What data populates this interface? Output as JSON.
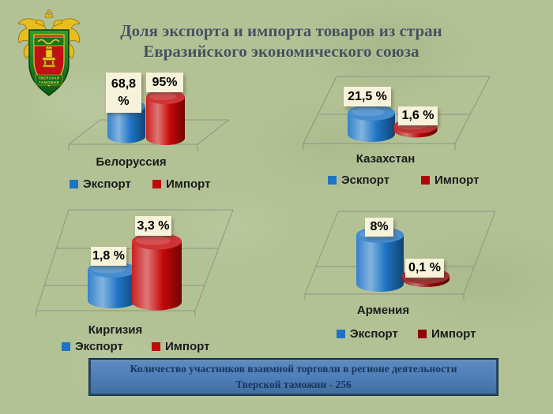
{
  "title": {
    "line1": "Доля экспорта и импорта товаров из стран",
    "line2": "Евразийского экономического союза"
  },
  "emblem": {
    "ribbon_line1": "ТВЕРСКАЯ",
    "ribbon_line2": "ТАМОЖНЯ"
  },
  "chart_data": [
    {
      "type": "cylinder-3d-bar",
      "country": "Белоруссия",
      "unit": "%",
      "series": [
        {
          "name": "Экспорт",
          "value": 68.8,
          "label": "68,8 %",
          "color": "#1d74c4"
        },
        {
          "name": "Импорт",
          "value": 95,
          "label": "95%",
          "color": "#c40808"
        }
      ],
      "legend": [
        "Экспорт",
        "Импорт"
      ],
      "legend_position": "bottom"
    },
    {
      "type": "cylinder-3d-bar",
      "country": "Казахстан",
      "unit": "%",
      "series": [
        {
          "name": "Эскпорт",
          "value": 21.5,
          "label": "21,5 %",
          "color": "#1d74c4"
        },
        {
          "name": "Импорт",
          "value": 1.6,
          "label": "1,6 %",
          "color": "#b30606"
        }
      ],
      "legend": [
        "Эскпорт",
        "Импорт"
      ],
      "legend_position": "bottom"
    },
    {
      "type": "cylinder-3d-bar",
      "country": "Киргизия",
      "unit": "%",
      "series": [
        {
          "name": "Экспорт",
          "value": 1.8,
          "label": "1,8 %",
          "color": "#1d74c4"
        },
        {
          "name": "Импорт",
          "value": 3.3,
          "label": "3,3 %",
          "color": "#c40808"
        }
      ],
      "legend": [
        "Экспорт",
        "Импорт"
      ],
      "legend_position": "bottom"
    },
    {
      "type": "cylinder-3d-bar",
      "country": "Армения",
      "unit": "%",
      "series": [
        {
          "name": "Экспорт",
          "value": 8,
          "label": "8%",
          "color": "#1d74c4"
        },
        {
          "name": "Импорт",
          "value": 0.1,
          "label": "0,1 %",
          "color": "#8e0404"
        }
      ],
      "legend": [
        "Экспорт",
        "Импорт"
      ],
      "legend_position": "bottom"
    }
  ],
  "banner": {
    "line1": "Количество участников взаимной торговли в регионе деятельности",
    "line2": "Тверской таможни - 256"
  },
  "colors": {
    "background": "#b3c295",
    "title_text": "#44515c",
    "label_text": "#1b1b1b",
    "value_box_bg": "#f6f3da",
    "floor_line": "#8f9383",
    "export_blue": "#1d74c4",
    "import_red": "#c40808",
    "banner_bg": "#4f81bd",
    "banner_border": "#27496f",
    "banner_text": "#17365d",
    "emblem_gold": "#e8bd1e",
    "emblem_green": "#1d8a24",
    "emblem_red": "#c01212"
  }
}
